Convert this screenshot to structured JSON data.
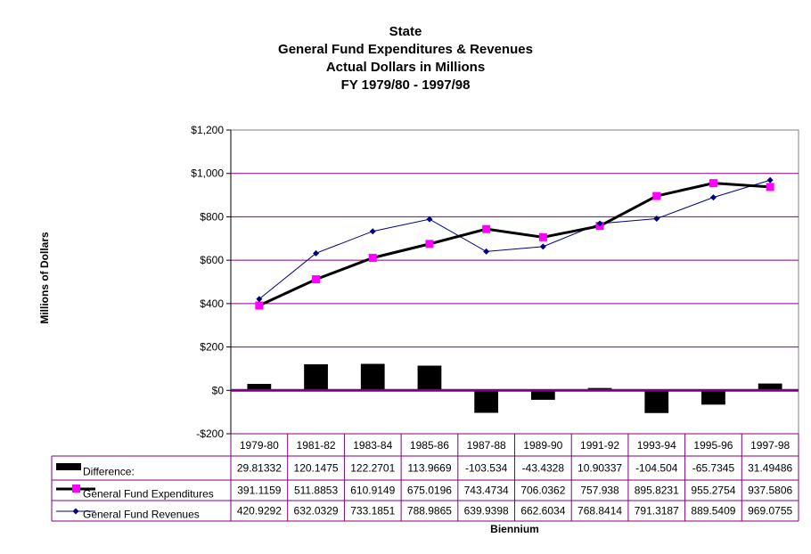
{
  "chart_data": {
    "type": "line",
    "title_lines": [
      "State",
      "General Fund Expenditures & Revenues",
      "Actual Dollars in Millions",
      "FY 1979/80 - 1997/98"
    ],
    "ylabel": "Millions of Dollars",
    "xlabel": "Biennium",
    "ylim": [
      -200,
      1200
    ],
    "yticks": [
      -200,
      0,
      200,
      400,
      600,
      800,
      1000,
      1200
    ],
    "ytick_labels": [
      "-$200",
      "$0",
      "$200",
      "$400",
      "$600",
      "$800",
      "$1,000",
      "$1,200"
    ],
    "categories": [
      "1979-80",
      "1981-82",
      "1983-84",
      "1985-86",
      "1987-88",
      "1989-90",
      "1991-92",
      "1993-94",
      "1995-96",
      "1997-98"
    ],
    "grid": true,
    "legend": "data-table",
    "series": [
      {
        "name": "Difference:",
        "kind": "bar",
        "color": "#000000",
        "values": [
          29.81332,
          120.1475,
          122.2701,
          113.9669,
          -103.534,
          -43.4328,
          10.90337,
          -104.504,
          -65.7345,
          31.49486
        ],
        "labels": [
          "29.81332",
          "120.1475",
          "122.2701",
          "113.9669",
          "-103.534",
          "-43.4328",
          "10.90337",
          "-104.504",
          "-65.7345",
          "31.49486"
        ]
      },
      {
        "name": "General Fund Expenditures",
        "kind": "line",
        "color": "#000000",
        "marker": "square",
        "marker_color": "#ff00ff",
        "values": [
          391.1159,
          511.8853,
          610.9149,
          675.0196,
          743.4734,
          706.0362,
          757.938,
          895.8231,
          955.2754,
          937.5806
        ],
        "labels": [
          "391.1159",
          "511.8853",
          "610.9149",
          "675.0196",
          "743.4734",
          "706.0362",
          "757.938",
          "895.8231",
          "955.2754",
          "937.5806"
        ]
      },
      {
        "name": "General Fund Revenues",
        "kind": "line",
        "color": "#000080",
        "marker": "diamond",
        "marker_color": "#000080",
        "values": [
          420.9292,
          632.0329,
          733.1851,
          788.9865,
          639.9398,
          662.6034,
          768.8414,
          791.3187,
          889.5409,
          969.0755
        ],
        "labels": [
          "420.9292",
          "632.0329",
          "733.1851",
          "788.9865",
          "639.9398",
          "662.6034",
          "768.8414",
          "791.3187",
          "889.5409",
          "969.0755"
        ]
      }
    ],
    "colors": {
      "grid": "#800080",
      "zero_line": "#800080",
      "table_border": "#800080",
      "plot_border": "#808080"
    }
  }
}
